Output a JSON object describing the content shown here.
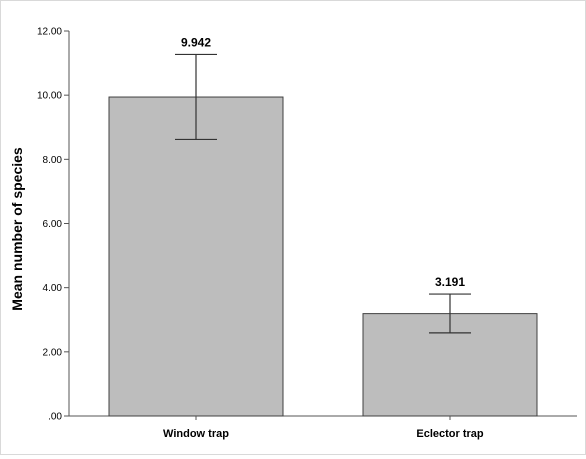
{
  "chart_data": {
    "type": "bar",
    "categories": [
      "Window trap",
      "Eclector trap"
    ],
    "values": [
      9.942,
      3.191
    ],
    "error_bars": [
      {
        "lower": 8.62,
        "upper": 11.27
      },
      {
        "lower": 2.59,
        "upper": 3.8
      }
    ],
    "data_labels": [
      "9.942",
      "3.191"
    ],
    "title": "",
    "xlabel": "",
    "ylabel": "Mean number of species",
    "ylim": [
      0,
      12
    ],
    "yticks": [
      0,
      2,
      4,
      6,
      8,
      10,
      12
    ],
    "ytick_labels": [
      ".00",
      "2.00",
      "4.00",
      "6.00",
      "8.00",
      "10.00",
      "12.00"
    ],
    "grid": false,
    "legend": "none",
    "bar_color": "#bdbdbd",
    "bar_edge_color": "#404040"
  }
}
